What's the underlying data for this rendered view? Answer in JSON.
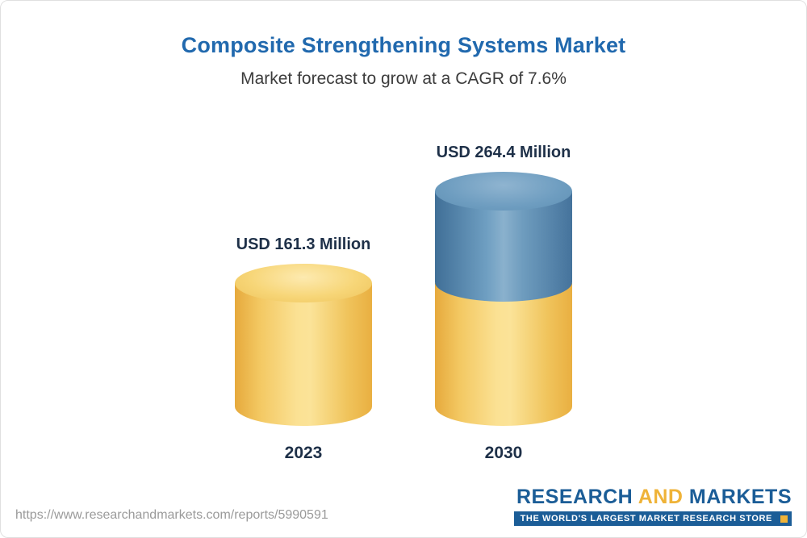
{
  "chart_data": {
    "type": "bar",
    "title": "Composite Strengthening Systems Market",
    "subtitle": "Market forecast to grow at a CAGR of 7.6%",
    "categories": [
      "2023",
      "2030"
    ],
    "values": [
      161.3,
      264.4
    ],
    "value_labels": [
      "USD 161.3 Million",
      "USD 264.4 Million"
    ],
    "unit": "USD Million",
    "bar_style": "3d-cylinder",
    "grid": false,
    "legend": false,
    "ylim": [
      0,
      290
    ],
    "colors": {
      "base_segment": "#F2C14E",
      "growth_segment": "#5588B0",
      "title": "#2169AE",
      "label_text": "#1E3048"
    }
  },
  "footer": {
    "url": "https://www.researchandmarkets.com/reports/5990591",
    "logo": {
      "word_research": "RESEARCH",
      "word_and": "AND",
      "word_markets": "MARKETS",
      "tagline": "THE WORLD'S LARGEST MARKET RESEARCH STORE"
    }
  }
}
